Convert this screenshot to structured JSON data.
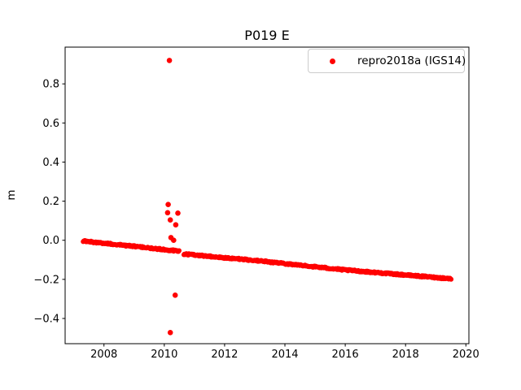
{
  "figure": {
    "background_color": "#ffffff",
    "axes_edge_color": "#000000"
  },
  "chart_data": {
    "type": "scatter",
    "title": "P019 E",
    "xlabel": "",
    "ylabel": "m",
    "xlim": [
      2006.712,
      2020.1
    ],
    "ylim": [
      -0.529,
      0.988
    ],
    "xticks": [
      2008,
      2010,
      2012,
      2014,
      2016,
      2018,
      2020
    ],
    "xtick_labels": [
      "2008",
      "2010",
      "2012",
      "2014",
      "2016",
      "2018",
      "2020"
    ],
    "yticks": [
      -0.4,
      -0.2,
      0.0,
      0.2,
      0.4,
      0.6,
      0.8
    ],
    "ytick_labels": [
      "−0.4",
      "−0.2",
      "0.0",
      "0.2",
      "0.4",
      "0.6",
      "0.8"
    ],
    "grid": false,
    "legend": {
      "position": "upper right",
      "entries": [
        {
          "label": "repro2018a (IGS14)",
          "marker": "dot",
          "color": "#ff0000"
        }
      ]
    },
    "series": [
      {
        "name": "repro2018a (IGS14)",
        "color": "#ff0000",
        "marker": "dot",
        "marker_px_radius": 3,
        "description": "dense near-daily position time series declining approximately linearly, with a small data gap and offset near 2010.5 and outliers near 2010.2",
        "trend_anchors": [
          [
            2007.31,
            -0.004
          ],
          [
            2009.0,
            -0.031
          ],
          [
            2010.5,
            -0.056
          ],
          [
            2010.63,
            -0.07
          ],
          [
            2013.0,
            -0.103
          ],
          [
            2016.0,
            -0.152
          ],
          [
            2019.52,
            -0.197
          ]
        ],
        "gap_years": [
          2010.5,
          2010.63
        ],
        "sampling_step_years": 0.02,
        "jitter_amplitude": 0.004,
        "outliers": [
          [
            2010.17,
            0.92
          ],
          [
            2010.13,
            0.183
          ],
          [
            2010.11,
            0.141
          ],
          [
            2010.45,
            0.139
          ],
          [
            2010.2,
            0.104
          ],
          [
            2010.38,
            0.079
          ],
          [
            2010.22,
            0.014
          ],
          [
            2010.31,
            0.0
          ],
          [
            2010.36,
            -0.281
          ],
          [
            2010.2,
            -0.472
          ]
        ]
      }
    ]
  }
}
